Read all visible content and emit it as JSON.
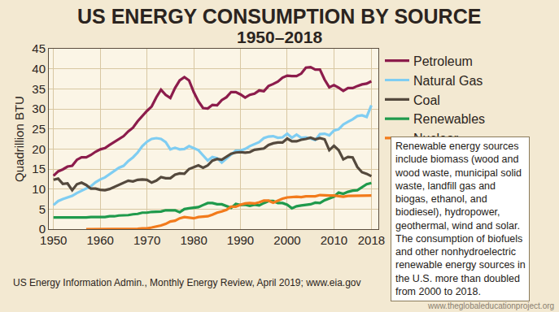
{
  "chart_data": {
    "type": "line",
    "title": "US ENERGY CONSUMPTION BY SOURCE",
    "subtitle": "1950–2018",
    "y_label": "Quadrillion BTU",
    "x": [
      1950,
      1951,
      1952,
      1953,
      1954,
      1955,
      1956,
      1957,
      1958,
      1959,
      1960,
      1961,
      1962,
      1963,
      1964,
      1965,
      1966,
      1967,
      1968,
      1969,
      1970,
      1971,
      1972,
      1973,
      1974,
      1975,
      1976,
      1977,
      1978,
      1979,
      1980,
      1981,
      1982,
      1983,
      1984,
      1985,
      1986,
      1987,
      1988,
      1989,
      1990,
      1991,
      1992,
      1993,
      1994,
      1995,
      1996,
      1997,
      1998,
      1999,
      2000,
      2001,
      2002,
      2003,
      2004,
      2005,
      2006,
      2007,
      2008,
      2009,
      2010,
      2011,
      2012,
      2013,
      2014,
      2015,
      2016,
      2017,
      2018
    ],
    "series": [
      {
        "name": "Petroleum",
        "color": "#8c1c4c",
        "values": [
          13.3,
          14.4,
          14.9,
          15.6,
          15.8,
          17.3,
          17.9,
          17.9,
          18.5,
          19.3,
          19.9,
          20.2,
          21.0,
          21.7,
          22.4,
          23.2,
          24.4,
          25.3,
          26.9,
          28.3,
          29.5,
          30.6,
          32.9,
          34.8,
          33.5,
          32.7,
          35.2,
          37.1,
          37.9,
          37.1,
          34.2,
          31.9,
          30.2,
          30.1,
          31.0,
          30.9,
          32.2,
          32.9,
          34.2,
          34.2,
          33.6,
          32.8,
          33.5,
          33.8,
          34.6,
          34.4,
          35.7,
          36.2,
          36.8,
          37.8,
          38.3,
          38.2,
          38.2,
          38.8,
          40.3,
          40.4,
          39.8,
          39.8,
          37.3,
          35.4,
          35.9,
          35.3,
          34.5,
          35.2,
          35.2,
          35.7,
          36.1,
          36.3,
          36.9
        ]
      },
      {
        "name": "Natural Gas",
        "color": "#7fcdf2",
        "values": [
          6.0,
          7.0,
          7.5,
          7.9,
          8.3,
          9.0,
          9.6,
          10.2,
          10.7,
          11.7,
          12.4,
          12.9,
          13.7,
          14.4,
          15.3,
          15.8,
          17.0,
          17.9,
          19.1,
          20.7,
          21.8,
          22.5,
          22.7,
          22.5,
          21.7,
          19.9,
          20.3,
          19.9,
          20.0,
          20.7,
          20.2,
          19.7,
          18.4,
          17.1,
          18.0,
          17.7,
          16.6,
          17.6,
          18.4,
          19.6,
          19.6,
          20.0,
          20.7,
          21.2,
          21.7,
          22.7,
          23.1,
          23.2,
          22.8,
          22.9,
          23.8,
          22.8,
          23.6,
          22.8,
          22.9,
          22.6,
          22.2,
          23.7,
          23.8,
          23.4,
          24.6,
          24.9,
          26.1,
          26.8,
          27.4,
          28.2,
          28.4,
          28.0,
          30.9
        ]
      },
      {
        "name": "Coal",
        "color": "#54493d",
        "values": [
          12.3,
          12.6,
          11.3,
          11.4,
          9.7,
          11.2,
          11.6,
          11.0,
          10.1,
          10.1,
          9.8,
          9.7,
          10.0,
          10.5,
          11.0,
          11.6,
          12.1,
          11.9,
          12.3,
          12.4,
          12.3,
          11.6,
          12.1,
          13.0,
          12.7,
          12.7,
          13.6,
          13.9,
          13.8,
          15.0,
          15.4,
          15.9,
          15.3,
          15.9,
          17.1,
          17.5,
          17.3,
          18.0,
          18.8,
          19.1,
          19.2,
          19.1,
          19.2,
          19.8,
          19.9,
          20.1,
          21.0,
          21.4,
          21.6,
          21.6,
          22.6,
          21.9,
          21.9,
          22.3,
          22.5,
          22.8,
          22.4,
          22.7,
          22.4,
          19.7,
          20.8,
          19.7,
          17.4,
          18.0,
          17.9,
          15.5,
          14.2,
          13.8,
          13.2
        ]
      },
      {
        "name": "Renewables",
        "color": "#1f9a4c",
        "values": [
          2.9,
          2.9,
          2.9,
          2.8,
          2.8,
          2.8,
          2.9,
          2.9,
          3.0,
          3.0,
          2.9,
          3.0,
          3.2,
          3.2,
          3.4,
          3.4,
          3.5,
          3.7,
          3.8,
          4.1,
          4.1,
          4.3,
          4.4,
          4.4,
          4.7,
          4.7,
          4.7,
          4.2,
          5.0,
          5.2,
          5.4,
          5.5,
          6.0,
          6.5,
          6.5,
          6.2,
          6.2,
          5.7,
          5.3,
          6.3,
          6.0,
          6.1,
          5.8,
          6.1,
          5.9,
          6.5,
          7.0,
          7.0,
          6.5,
          6.5,
          6.1,
          5.2,
          5.7,
          5.9,
          6.1,
          6.2,
          6.6,
          6.5,
          7.2,
          7.6,
          8.1,
          9.1,
          8.8,
          9.3,
          9.6,
          9.7,
          10.4,
          11.2,
          11.5
        ]
      },
      {
        "name": "Nuclear",
        "color": "#f27b1c",
        "values": [
          null,
          null,
          null,
          null,
          null,
          null,
          null,
          0,
          0,
          0,
          0,
          0,
          0,
          0,
          0,
          0,
          0.1,
          0.1,
          0.1,
          0.2,
          0.2,
          0.4,
          0.6,
          0.9,
          1.3,
          1.9,
          2.1,
          2.7,
          3.0,
          2.8,
          2.7,
          3.0,
          3.1,
          3.2,
          3.6,
          4.1,
          4.4,
          4.8,
          5.6,
          5.6,
          6.1,
          6.4,
          6.5,
          6.4,
          6.7,
          7.1,
          7.1,
          6.6,
          7.1,
          7.6,
          7.9,
          8.0,
          8.1,
          8.0,
          8.2,
          8.2,
          8.2,
          8.5,
          8.4,
          8.4,
          8.4,
          8.3,
          8.1,
          8.3,
          8.3,
          8.3,
          8.4,
          8.4,
          8.4
        ]
      }
    ],
    "xlim": [
      1949,
      2019.5
    ],
    "xticks": [
      1950,
      1960,
      1970,
      1980,
      1990,
      2000,
      2010,
      2018
    ],
    "ylim": [
      0,
      45
    ],
    "yticks": [
      0,
      5,
      10,
      15,
      20,
      25,
      30,
      35,
      40,
      45
    ],
    "grid": true,
    "legend": "right",
    "source": "US Energy Information Admin., Monthly Energy Review, April 2019; www.eia.gov",
    "annotations": [
      {
        "lines": [
          "Renewable energy sources",
          "include biomass (wood and",
          "wood waste, municipal solid",
          "waste, landfill gas and",
          "biogas, ethanol, and",
          "biodiesel), hydropower,",
          "geothermal, wind and solar.",
          "The consumption of biofuels",
          "and other nonhydroelectric",
          "renewable energy sources in",
          "the U.S. more than doubled",
          "from 2000 to 2018."
        ]
      },
      {
        "text": "www.theglobaleducationproject.org"
      }
    ]
  }
}
